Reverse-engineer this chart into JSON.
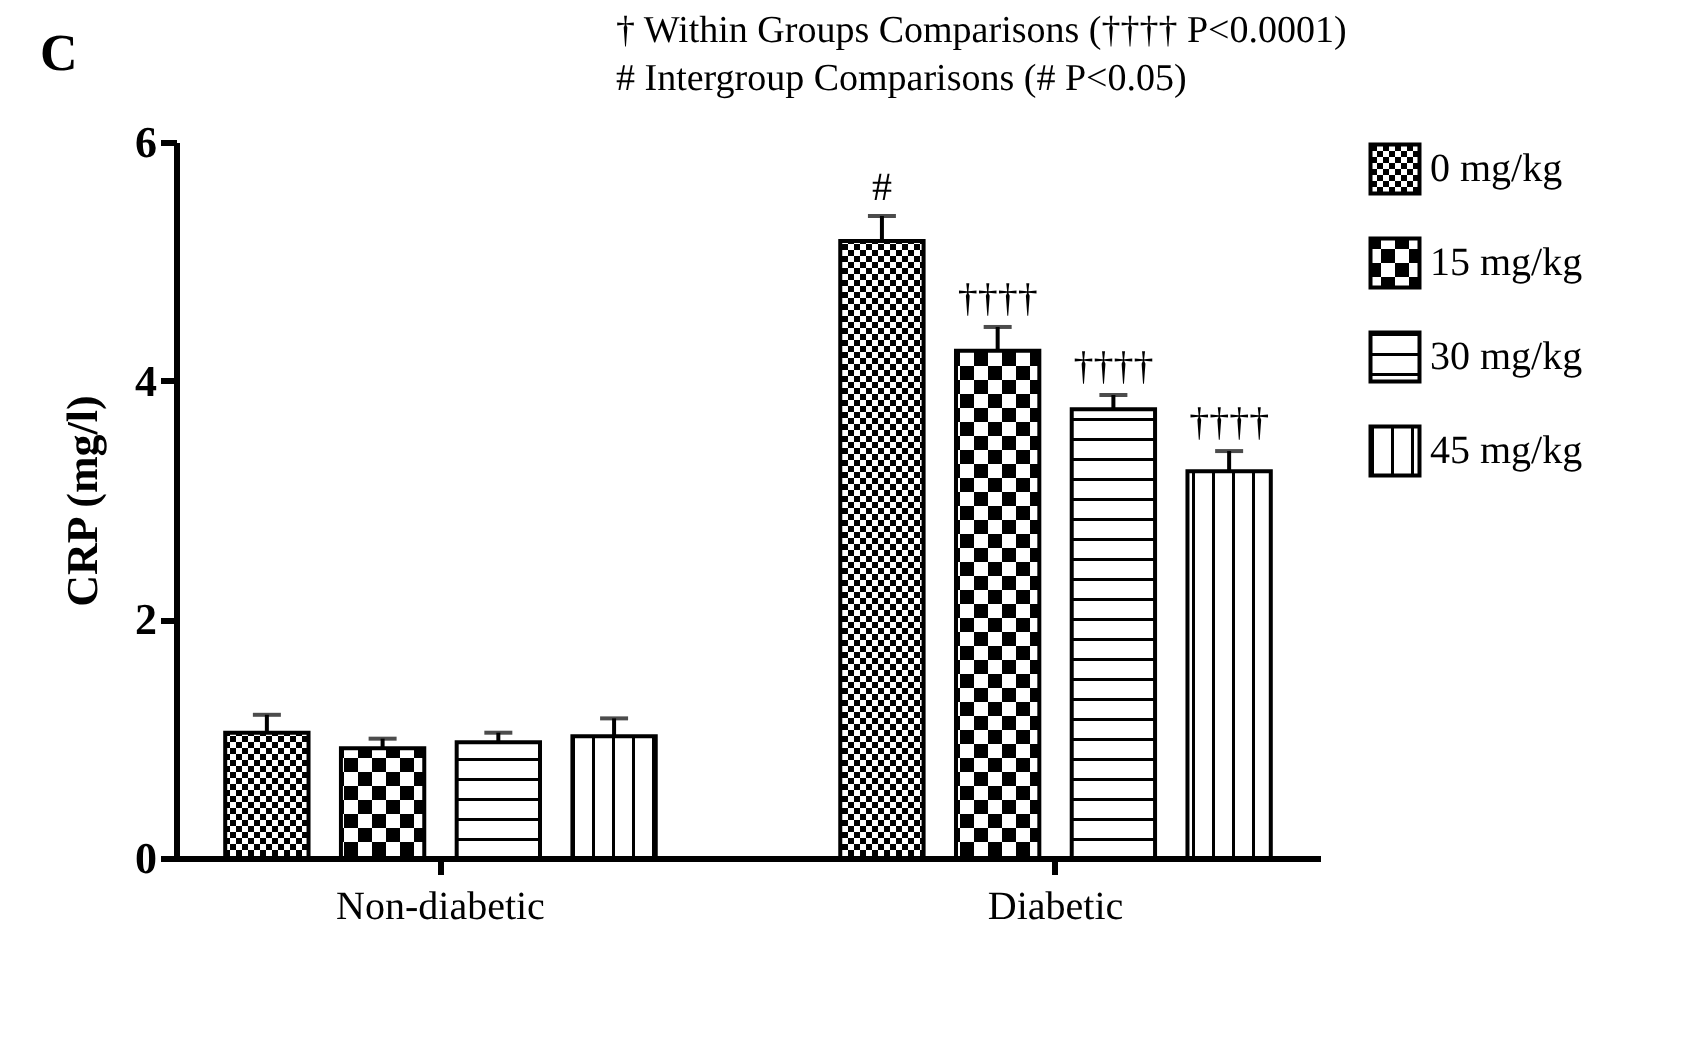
{
  "chart_data": {
    "type": "bar",
    "title": "C",
    "ylabel": "CRP (mg/l)",
    "categories": [
      "Non-diabetic",
      "Diabetic"
    ],
    "series": [
      {
        "name": "0 mg/kg",
        "values": [
          1.05,
          5.17
        ],
        "errors": [
          0.15,
          0.21
        ]
      },
      {
        "name": "15 mg/kg",
        "values": [
          0.92,
          4.25
        ],
        "errors": [
          0.08,
          0.2
        ]
      },
      {
        "name": "30 mg/kg",
        "values": [
          0.97,
          3.76
        ],
        "errors": [
          0.08,
          0.12
        ]
      },
      {
        "name": "45 mg/kg",
        "values": [
          1.02,
          3.24
        ],
        "errors": [
          0.15,
          0.17
        ]
      }
    ],
    "ylim": [
      0,
      6
    ],
    "yticks": [
      0,
      2,
      4,
      6
    ],
    "grid": false,
    "legend": "right",
    "annotations": [
      "† Within Groups Comparisons (†††† P<0.0001)",
      "# Intergroup Comparisons (# P<0.05)",
      "#",
      "††††",
      "††††",
      "††††"
    ]
  }
}
